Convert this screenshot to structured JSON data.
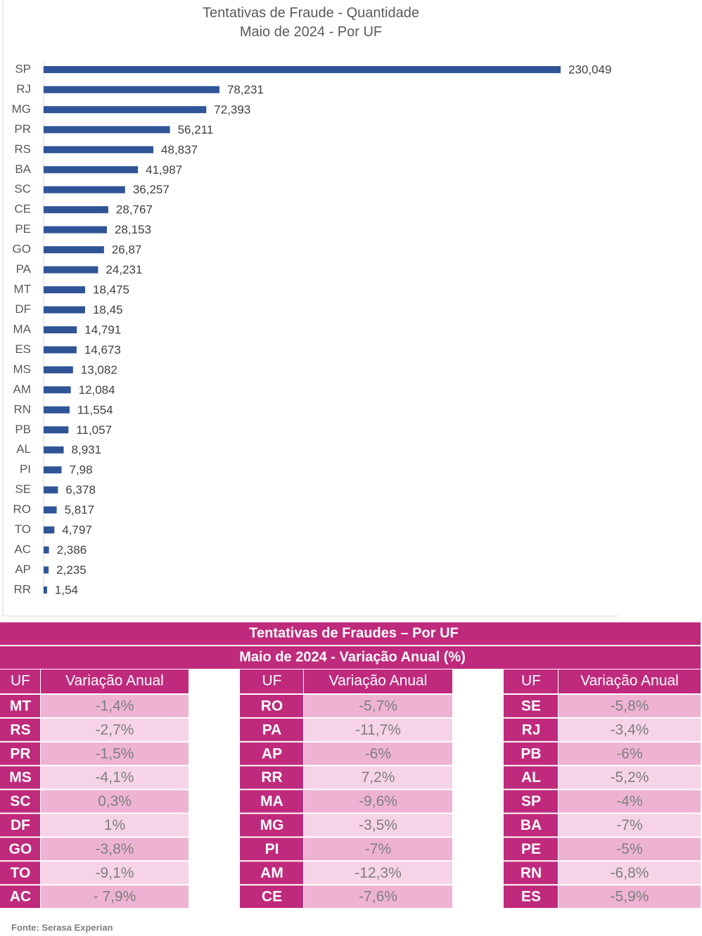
{
  "chart_data": {
    "type": "bar",
    "orientation": "horizontal",
    "title": "Tentativas de Fraude - Quantidade",
    "subtitle": "Maio de 2024 - Por UF",
    "categories": [
      "SP",
      "RJ",
      "MG",
      "PR",
      "RS",
      "BA",
      "SC",
      "CE",
      "PE",
      "GO",
      "PA",
      "MT",
      "DF",
      "MA",
      "ES",
      "MS",
      "AM",
      "RN",
      "PB",
      "AL",
      "PI",
      "SE",
      "RO",
      "TO",
      "AC",
      "AP",
      "RR"
    ],
    "values": [
      230.049,
      78.231,
      72.393,
      56.211,
      48.837,
      41.987,
      36.257,
      28.767,
      28.153,
      26.87,
      24.231,
      18.475,
      18.45,
      14.791,
      14.673,
      13.082,
      12.084,
      11.554,
      11.057,
      8.931,
      7.98,
      6.378,
      5.817,
      4.797,
      2.386,
      2.235,
      1.54
    ],
    "value_labels": [
      "230,049",
      "78,231",
      "72,393",
      "56,211",
      "48,837",
      "41,987",
      "36,257",
      "28,767",
      "28,153",
      "26,87",
      "24,231",
      "18,475",
      "18,45",
      "14,791",
      "14,673",
      "13,082",
      "12,084",
      "11,554",
      "11,057",
      "8,931",
      "7,98",
      "6,378",
      "5,817",
      "4,797",
      "2,386",
      "2,235",
      "1,54"
    ],
    "color": "#2f5597"
  },
  "table": {
    "title": "Tentativas de Fraudes – Por UF",
    "subtitle": "Maio de 2024 - Variação Anual (%)",
    "groups": [
      {
        "headers": [
          "UF",
          "Variação Anual"
        ],
        "rows": [
          [
            "MT",
            "-1,4%"
          ],
          [
            "RS",
            "-2,7%"
          ],
          [
            "PR",
            "-1,5%"
          ],
          [
            "MS",
            "-4,1%"
          ],
          [
            "SC",
            "0,3%"
          ],
          [
            "DF",
            "1%"
          ],
          [
            "GO",
            "-3,8%"
          ],
          [
            "TO",
            "-9,1%"
          ],
          [
            "AC",
            "- 7,9%"
          ]
        ]
      },
      {
        "headers": [
          "UF",
          "Variação Anual"
        ],
        "rows": [
          [
            "RO",
            "-5,7%"
          ],
          [
            "PA",
            "-11,7%"
          ],
          [
            "AP",
            "-6%"
          ],
          [
            "RR",
            "7,2%"
          ],
          [
            "MA",
            "-9,6%"
          ],
          [
            "MG",
            "-3,5%"
          ],
          [
            "PI",
            "-7%"
          ],
          [
            "AM",
            "-12,3%"
          ],
          [
            "CE",
            "-7,6%"
          ]
        ]
      },
      {
        "headers": [
          "UF",
          "Variação Anual"
        ],
        "rows": [
          [
            "SE",
            "-5,8%"
          ],
          [
            "RJ",
            "-3,4%"
          ],
          [
            "PB",
            "-6%"
          ],
          [
            "AL",
            "-5,2%"
          ],
          [
            "SP",
            "-4%"
          ],
          [
            "BA",
            "-7%"
          ],
          [
            "PE",
            "-5%"
          ],
          [
            "RN",
            "-6,8%"
          ],
          [
            "ES",
            "-5,9%"
          ]
        ]
      }
    ]
  },
  "source": "Fonte: Serasa Experian"
}
